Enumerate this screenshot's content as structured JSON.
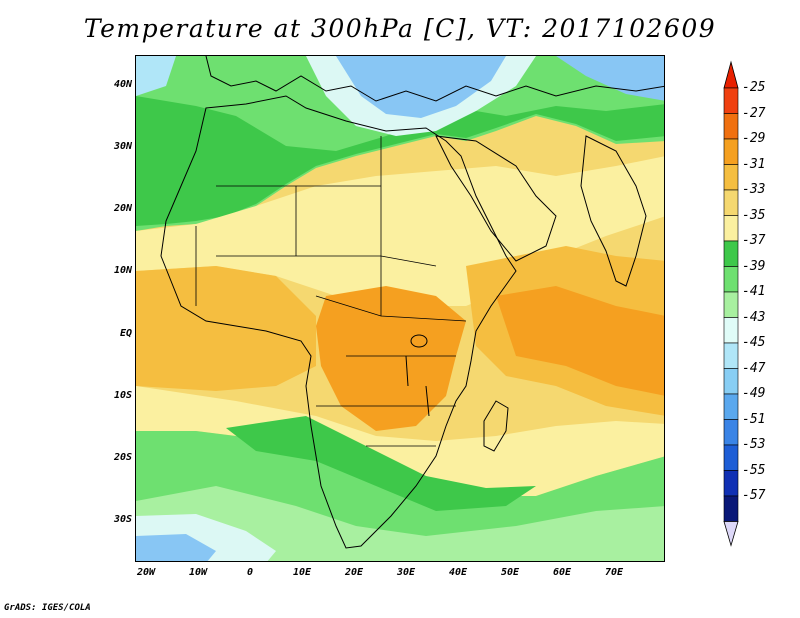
{
  "title": "Temperature at 300hPa [C], VT: 2017102609",
  "footer": "GrADS: IGES/COLA",
  "lat_labels": [
    "40N",
    "30N",
    "20N",
    "10N",
    "EQ",
    "10S",
    "20S",
    "30S"
  ],
  "lon_labels": [
    "20W",
    "10W",
    "0",
    "10E",
    "20E",
    "30E",
    "40E",
    "50E",
    "60E",
    "70E"
  ],
  "colorbar": {
    "labels": [
      "-25",
      "-27",
      "-29",
      "-31",
      "-33",
      "-35",
      "-37",
      "-39",
      "-41",
      "-43",
      "-45",
      "-47",
      "-49",
      "-51",
      "-53",
      "-55",
      "-57"
    ],
    "colors": [
      "#f04010",
      "#f07010",
      "#f5a020",
      "#f5be40",
      "#f5d870",
      "#fbf0a0",
      "#3ec84a",
      "#6ee070",
      "#a8f0a0",
      "#e0fcf8",
      "#b0e6f8",
      "#88cef4",
      "#5aa8ee",
      "#3a84e6",
      "#1e5ed6",
      "#1030b4",
      "#0a1878"
    ],
    "top_arrow_color": "#e82000",
    "bottom_arrow_color": "#ddd8f8"
  },
  "palette": {
    "land_border": "#000000",
    "cold_blue": "#88c6f4",
    "cold_pale": "#dcf8f4",
    "green_dark": "#3ec84a",
    "green_mid": "#6ee070",
    "green_light": "#a8f0a0",
    "yellow_pale": "#fbf0a0",
    "yellow": "#f5d870",
    "orange_light": "#f5be40",
    "orange": "#f5a020"
  }
}
